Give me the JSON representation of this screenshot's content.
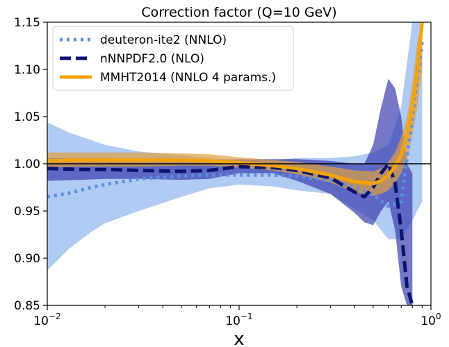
{
  "chart_data": {
    "type": "line",
    "title": "Correction factor (Q=10 GeV)",
    "xlabel": "x",
    "ylabel": "",
    "xscale": "log",
    "xlim": [
      0.01,
      1.0
    ],
    "ylim": [
      0.85,
      1.15
    ],
    "x_ticks": [
      {
        "value": 0.01,
        "base": "10",
        "exp": "−2"
      },
      {
        "value": 0.1,
        "base": "10",
        "exp": "−1"
      },
      {
        "value": 1.0,
        "base": "10",
        "exp": "0"
      }
    ],
    "y_ticks": [
      {
        "value": 0.85,
        "label": "0.85"
      },
      {
        "value": 0.9,
        "label": "0.90"
      },
      {
        "value": 0.95,
        "label": "0.95"
      },
      {
        "value": 1.0,
        "label": "1.00"
      },
      {
        "value": 1.05,
        "label": "1.05"
      },
      {
        "value": 1.1,
        "label": "1.10"
      },
      {
        "value": 1.15,
        "label": "1.15"
      }
    ],
    "reference_line": 1.0,
    "legend_position": "top-left",
    "series": [
      {
        "name": "deuteron-ite2 (NNLO)",
        "color": "#5b8fe6",
        "band_color": "#8fb4ee",
        "style": "dotted",
        "x": [
          0.01,
          0.013,
          0.017,
          0.02,
          0.03,
          0.05,
          0.07,
          0.1,
          0.15,
          0.2,
          0.3,
          0.4,
          0.5,
          0.6,
          0.7,
          0.8,
          0.9
        ],
        "y": [
          0.965,
          0.969,
          0.975,
          0.978,
          0.984,
          0.987,
          0.988,
          0.988,
          0.988,
          0.987,
          0.982,
          0.975,
          0.967,
          0.955,
          0.96,
          1.05,
          1.13
        ],
        "lower": [
          0.887,
          0.91,
          0.928,
          0.937,
          0.95,
          0.965,
          0.974,
          0.978,
          0.976,
          0.972,
          0.968,
          0.952,
          0.94,
          0.92,
          0.92,
          0.94,
          0.96
        ],
        "upper": [
          1.044,
          1.033,
          1.025,
          1.02,
          1.013,
          1.009,
          1.006,
          1.004,
          1.004,
          1.006,
          1.006,
          1.008,
          1.012,
          1.02,
          1.06,
          1.15,
          1.15
        ]
      },
      {
        "name": "nNNPDF2.0 (NLO)",
        "color": "#0c1470",
        "band_color": "#3a3fae",
        "style": "dashed",
        "x": [
          0.01,
          0.015,
          0.02,
          0.03,
          0.05,
          0.07,
          0.1,
          0.15,
          0.2,
          0.3,
          0.4,
          0.45,
          0.5,
          0.55,
          0.6,
          0.65,
          0.7,
          0.75,
          0.8
        ],
        "y": [
          0.995,
          0.994,
          0.994,
          0.993,
          0.992,
          0.993,
          0.997,
          0.996,
          0.993,
          0.985,
          0.97,
          0.965,
          0.975,
          0.99,
          1.0,
          0.98,
          0.93,
          0.87,
          0.85
        ],
        "lower": [
          0.982,
          0.983,
          0.984,
          0.984,
          0.983,
          0.984,
          0.99,
          0.99,
          0.982,
          0.968,
          0.948,
          0.938,
          0.935,
          0.95,
          0.96,
          0.93,
          0.87,
          0.85,
          0.85
        ],
        "upper": [
          1.006,
          1.006,
          1.006,
          1.005,
          1.003,
          1.004,
          1.005,
          1.005,
          1.005,
          1.003,
          1.0,
          1.0,
          1.02,
          1.06,
          1.09,
          1.08,
          1.05,
          1.0,
          0.99
        ]
      },
      {
        "name": "MMHT2014 (NNLO 4 params.)",
        "color": "#f4a30c",
        "band_color": "#e0a040",
        "style": "solid",
        "x": [
          0.01,
          0.015,
          0.02,
          0.03,
          0.05,
          0.07,
          0.1,
          0.15,
          0.2,
          0.3,
          0.4,
          0.5,
          0.55,
          0.6,
          0.65,
          0.7,
          0.75,
          0.8,
          0.85,
          0.9
        ],
        "y": [
          1.003,
          1.004,
          1.004,
          1.004,
          1.004,
          1.003,
          1.001,
          0.998,
          0.995,
          0.988,
          0.981,
          0.979,
          0.982,
          0.988,
          0.997,
          1.01,
          1.03,
          1.06,
          1.1,
          1.15
        ],
        "lower": [
          0.996,
          0.997,
          0.997,
          0.997,
          0.998,
          0.998,
          0.996,
          0.993,
          0.989,
          0.98,
          0.97,
          0.966,
          0.968,
          0.972,
          0.98,
          0.99,
          1.005,
          1.03,
          1.06,
          1.1
        ],
        "upper": [
          1.012,
          1.012,
          1.012,
          1.012,
          1.011,
          1.01,
          1.007,
          1.004,
          1.002,
          0.997,
          0.993,
          0.992,
          0.995,
          1.002,
          1.012,
          1.028,
          1.05,
          1.085,
          1.13,
          1.15
        ]
      }
    ]
  }
}
